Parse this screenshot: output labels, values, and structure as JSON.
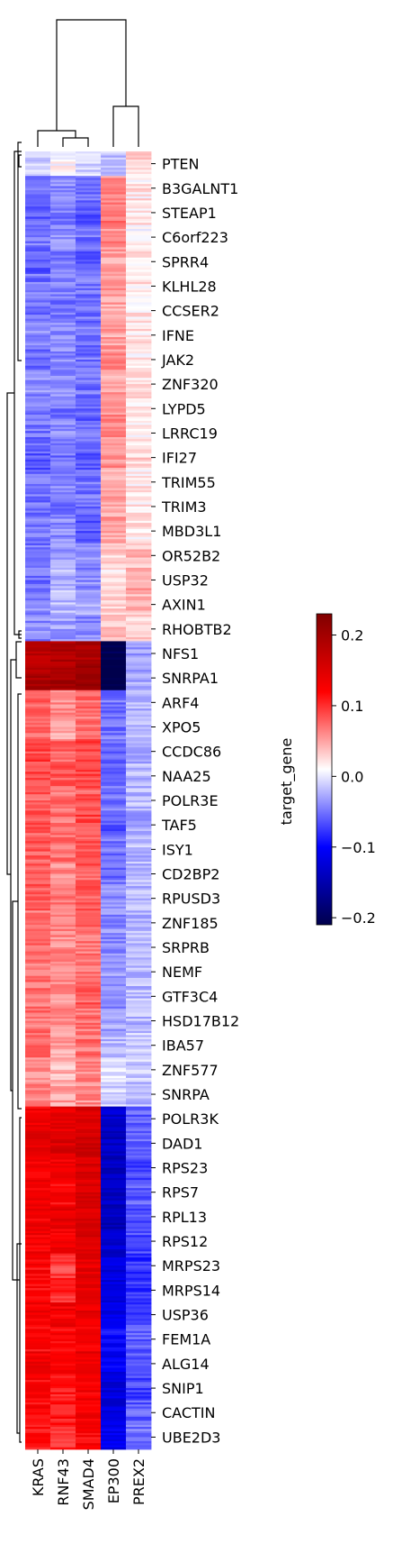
{
  "chart_data": {
    "type": "heatmap",
    "title": "",
    "xlabel": "",
    "ylabel": "",
    "columns": [
      "KRAS",
      "RNF43",
      "SMAD4",
      "EP300",
      "PREX2"
    ],
    "row_tick_labels": [
      "PTEN",
      "B3GALNT1",
      "STEAP1",
      "C6orf223",
      "SPRR4",
      "KLHL28",
      "CCSER2",
      "IFNE",
      "JAK2",
      "ZNF320",
      "LYPD5",
      "LRRC19",
      "IFI27",
      "TRIM55",
      "TRIM3",
      "MBD3L1",
      "OR52B2",
      "USP32",
      "AXIN1",
      "RHOBTB2",
      "NFS1",
      "SNRPA1",
      "ARF4",
      "XPO5",
      "CCDC86",
      "NAA25",
      "POLR3E",
      "TAF5",
      "ISY1",
      "CD2BP2",
      "RPUSD3",
      "ZNF185",
      "SRPRB",
      "NEMF",
      "GTF3C4",
      "HSD17B12",
      "IBA57",
      "ZNF577",
      "SNRPA",
      "POLR3K",
      "DAD1",
      "RPS23",
      "RPS7",
      "RPL13",
      "RPS12",
      "MRPS23",
      "MRPS14",
      "USP36",
      "FEM1A",
      "ALG14",
      "SNIP1",
      "CACTIN",
      "UBE2D3"
    ],
    "row_values": [
      [
        -0.01,
        0.01,
        -0.01,
        -0.02,
        0.03
      ],
      [
        -0.05,
        -0.04,
        -0.05,
        0.06,
        0.02
      ],
      [
        -0.06,
        -0.05,
        -0.06,
        0.07,
        0.02
      ],
      [
        -0.05,
        -0.04,
        -0.05,
        0.06,
        0.01
      ],
      [
        -0.06,
        -0.05,
        -0.06,
        0.05,
        0.02
      ],
      [
        -0.05,
        -0.04,
        -0.05,
        0.05,
        0.02
      ],
      [
        -0.05,
        -0.05,
        -0.05,
        0.05,
        0.02
      ],
      [
        -0.04,
        -0.04,
        -0.05,
        0.05,
        0.02
      ],
      [
        -0.05,
        -0.04,
        -0.05,
        0.06,
        0.02
      ],
      [
        -0.04,
        -0.04,
        -0.05,
        0.05,
        0.02
      ],
      [
        -0.05,
        -0.05,
        -0.06,
        0.06,
        0.02
      ],
      [
        -0.05,
        -0.04,
        -0.05,
        0.06,
        0.02
      ],
      [
        -0.06,
        -0.05,
        -0.06,
        0.06,
        0.03
      ],
      [
        -0.05,
        -0.04,
        -0.05,
        0.05,
        0.02
      ],
      [
        -0.05,
        -0.05,
        -0.05,
        0.05,
        0.02
      ],
      [
        -0.05,
        -0.04,
        -0.06,
        0.05,
        0.02
      ],
      [
        -0.05,
        -0.03,
        -0.04,
        0.03,
        0.04
      ],
      [
        -0.05,
        -0.02,
        -0.04,
        0.02,
        0.05
      ],
      [
        -0.04,
        -0.02,
        -0.03,
        0.03,
        0.04
      ],
      [
        -0.04,
        -0.03,
        -0.04,
        0.04,
        0.03
      ],
      [
        0.18,
        0.19,
        0.19,
        -0.21,
        -0.03
      ],
      [
        0.19,
        0.2,
        0.2,
        -0.22,
        -0.03
      ],
      [
        0.08,
        0.06,
        0.07,
        -0.05,
        -0.02
      ],
      [
        0.07,
        0.05,
        0.07,
        -0.05,
        -0.02
      ],
      [
        0.09,
        0.08,
        0.09,
        -0.06,
        -0.03
      ],
      [
        0.09,
        0.08,
        0.09,
        -0.05,
        -0.02
      ],
      [
        0.08,
        0.07,
        0.08,
        -0.05,
        -0.02
      ],
      [
        0.08,
        0.07,
        0.09,
        -0.06,
        -0.03
      ],
      [
        0.08,
        0.07,
        0.08,
        -0.05,
        -0.02
      ],
      [
        0.08,
        0.06,
        0.08,
        -0.05,
        -0.02
      ],
      [
        0.08,
        0.07,
        0.08,
        -0.04,
        -0.02
      ],
      [
        0.07,
        0.06,
        0.08,
        -0.04,
        -0.02
      ],
      [
        0.07,
        0.06,
        0.07,
        -0.04,
        -0.02
      ],
      [
        0.07,
        0.06,
        0.07,
        -0.03,
        -0.02
      ],
      [
        0.07,
        0.06,
        0.08,
        -0.04,
        -0.02
      ],
      [
        0.07,
        0.06,
        0.07,
        -0.03,
        -0.02
      ],
      [
        0.07,
        0.05,
        0.07,
        -0.02,
        -0.01
      ],
      [
        0.06,
        0.04,
        0.06,
        0.0,
        -0.01
      ],
      [
        0.06,
        0.05,
        0.06,
        -0.01,
        -0.02
      ],
      [
        0.13,
        0.14,
        0.15,
        -0.13,
        -0.06
      ],
      [
        0.14,
        0.15,
        0.16,
        -0.14,
        -0.06
      ],
      [
        0.13,
        0.13,
        0.15,
        -0.14,
        -0.07
      ],
      [
        0.13,
        0.12,
        0.15,
        -0.14,
        -0.06
      ],
      [
        0.13,
        0.14,
        0.15,
        -0.14,
        -0.07
      ],
      [
        0.13,
        0.13,
        0.15,
        -0.13,
        -0.07
      ],
      [
        0.12,
        0.09,
        0.14,
        -0.12,
        -0.08
      ],
      [
        0.12,
        0.1,
        0.14,
        -0.12,
        -0.08
      ],
      [
        0.13,
        0.13,
        0.14,
        -0.11,
        -0.07
      ],
      [
        0.12,
        0.12,
        0.13,
        -0.1,
        -0.06
      ],
      [
        0.13,
        0.12,
        0.14,
        -0.11,
        -0.06
      ],
      [
        0.12,
        0.11,
        0.13,
        -0.12,
        -0.07
      ],
      [
        0.12,
        0.11,
        0.13,
        -0.12,
        -0.06
      ],
      [
        0.11,
        0.1,
        0.12,
        -0.11,
        -0.05
      ]
    ],
    "colorbar": {
      "label": "target_gene",
      "colormap": "seismic",
      "vmin": -0.21,
      "vmax": 0.23,
      "tick_labels": [
        "0.2",
        "0.1",
        "0.0",
        "−0.1",
        "−0.2"
      ],
      "tick_values": [
        0.2,
        0.1,
        0.0,
        -0.1,
        -0.2
      ]
    },
    "column_dendrogram": true,
    "row_dendrogram": true,
    "grid": false
  }
}
